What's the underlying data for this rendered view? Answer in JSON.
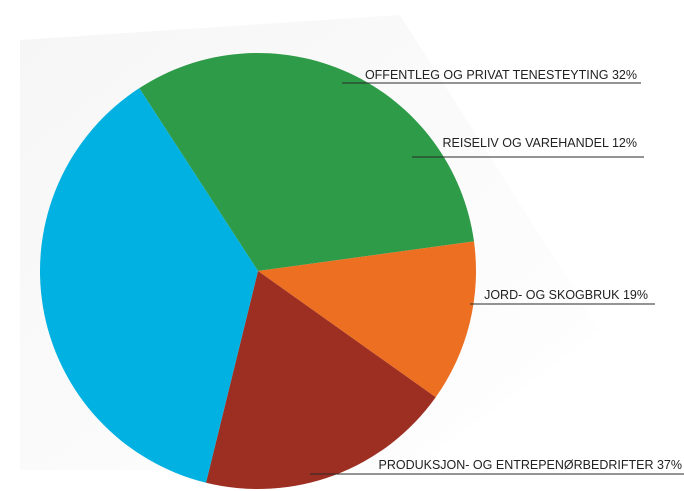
{
  "chart_data": {
    "type": "pie",
    "title": "",
    "slices": [
      {
        "name": "OFFENTLEG OG PRIVAT TENESTEYTING",
        "value": 32,
        "color": "#2e9b48",
        "label": "OFFENTLEG OG PRIVAT TENESTEYTING 32%"
      },
      {
        "name": "REISELIV OG VAREHANDEL",
        "value": 12,
        "color": "#ec6f22",
        "label": "REISELIV OG VAREHANDEL 12%"
      },
      {
        "name": "JORD- OG SKOGBRUK",
        "value": 19,
        "color": "#9c2e22",
        "label": "JORD- OG SKOGBRUK 19%"
      },
      {
        "name": "PRODUKSJON- OG ENTREPENØRBEDRIFTER",
        "value": 37,
        "color": "#00b1e1",
        "label": "PRODUKSJON- OG ENTREPENØRBEDRIFTER 37%"
      }
    ],
    "legend": "none"
  }
}
